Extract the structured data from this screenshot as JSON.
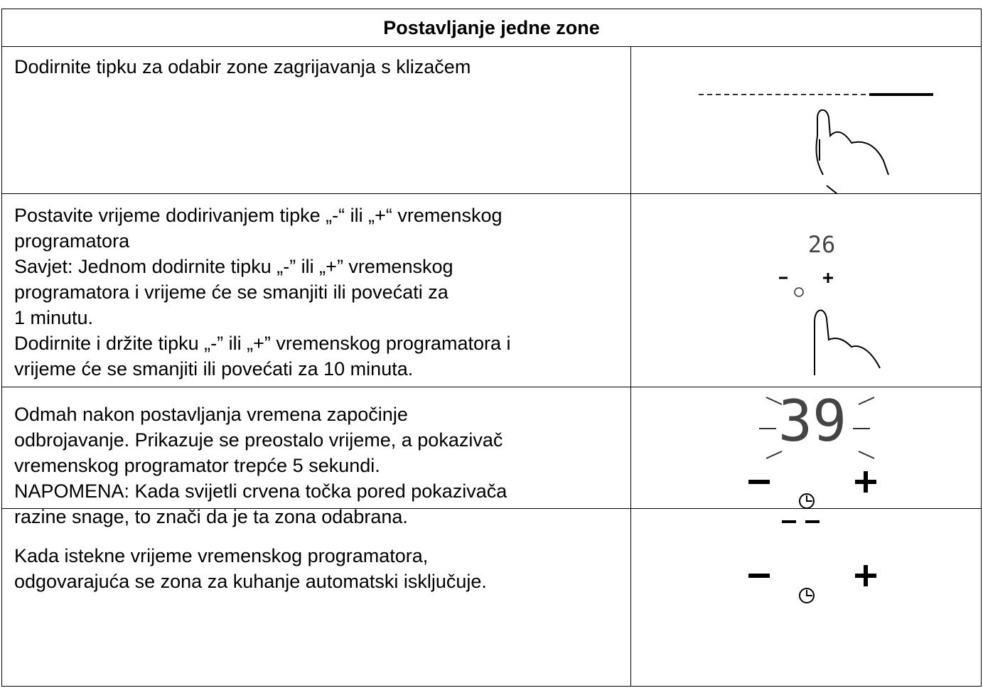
{
  "header": {
    "title": "Postavljanje jedne zone"
  },
  "rows": [
    {
      "lines": [
        "Dodirnite tipku za odabir zone zagrijavanja s klizačem"
      ]
    },
    {
      "lines": [
        "Postavite vrijeme dodirivanjem tipke „-“ ili „+“ vremenskog",
        "programatora",
        "Savjet: Jednom dodirnite tipku „-” ili „+” vremenskog",
        "programatora i vrijeme će se smanjiti ili povećati za",
        "1 minutu.",
        "Dodirnite i držite tipku „-” ili „+” vremenskog programatora i",
        "vrijeme će se smanjiti ili povećati za 10 minuta."
      ],
      "display": "26"
    },
    {
      "lines": [
        "Odmah nakon postavljanja vremena započinje",
        "odbrojavanje. Prikazuje se preostalo vrijeme, a pokazivač",
        "vremenskog programator trepće 5 sekundi.",
        "NAPOMENA: Kada svijetli crvena točka pored pokazivača",
        "razine snage, to znači da je ta zona odabrana."
      ],
      "display": "39"
    },
    {
      "lines": [
        "Kada istekne vrijeme vremenskog programatora,",
        "odgovarajuća se zona za kuhanje automatski isključuje."
      ]
    }
  ]
}
